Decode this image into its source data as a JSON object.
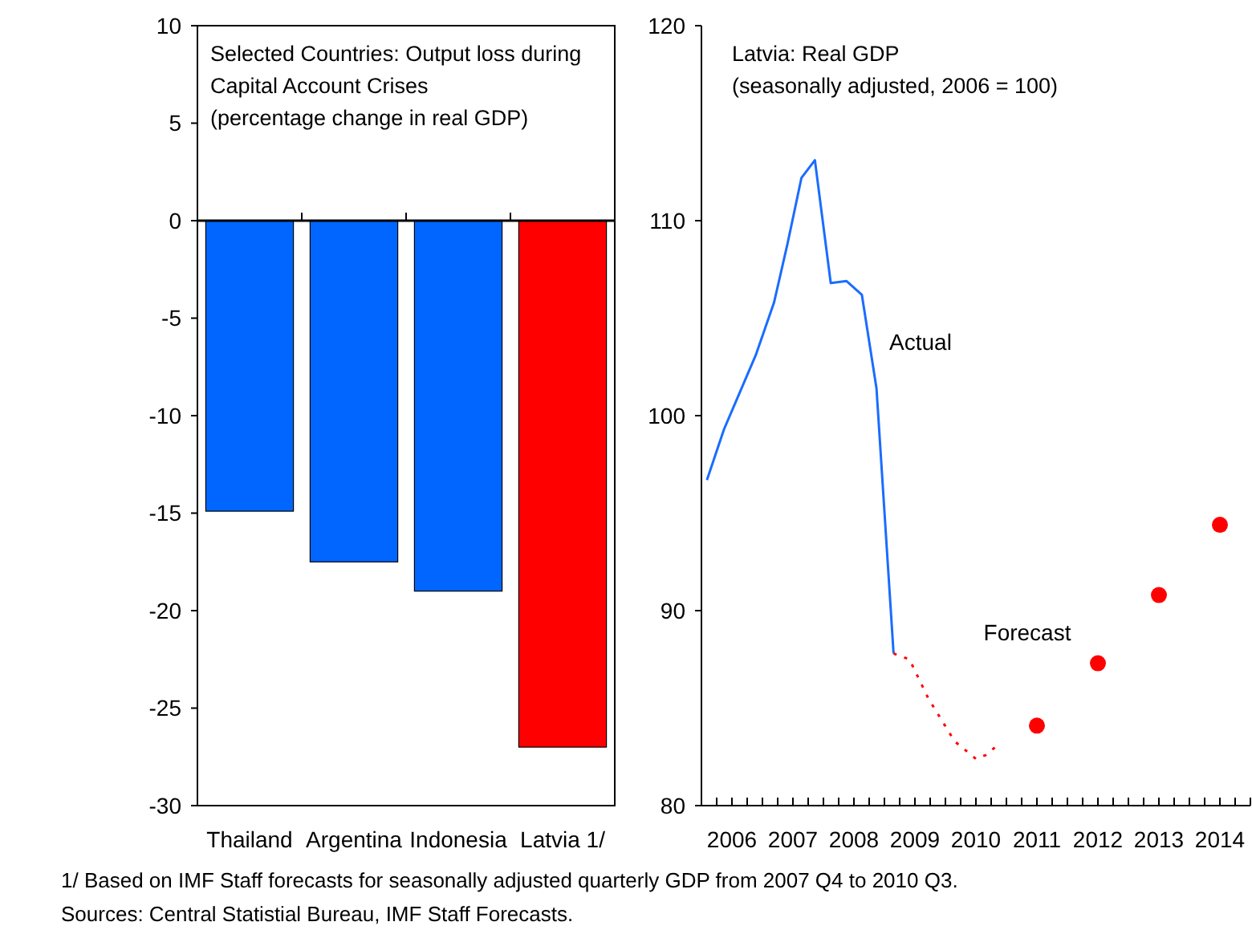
{
  "chart_data": [
    {
      "type": "bar",
      "title": "Selected Countries: Output loss during Capital Account Crises",
      "subtitle": "(percentage change in real GDP)",
      "categories": [
        "Thailand",
        "Argentina",
        "Indonesia",
        "Latvia 1/"
      ],
      "values": [
        -14.9,
        -17.5,
        -19.0,
        -27.0
      ],
      "colors": [
        "#0066ff",
        "#0066ff",
        "#0066ff",
        "#ff0000"
      ],
      "ylim": [
        -30,
        10
      ],
      "yticks": [
        -30,
        -25,
        -20,
        -15,
        -10,
        -5,
        0,
        5,
        10
      ],
      "annotations": [
        "1/ Based on IMF Staff forecasts for seasonally adjusted quarterly GDP from 2007 Q4 to 2010 Q3.",
        "Sources: Central Statistial Bureau, IMF Staff Forecasts."
      ]
    },
    {
      "type": "line",
      "title": "Latvia: Real GDP",
      "subtitle": "(seasonally adjusted, 2006 = 100)",
      "xlim": [
        2006,
        2015
      ],
      "ylim": [
        80,
        120
      ],
      "yticks": [
        80,
        90,
        100,
        110,
        120
      ],
      "xticks": [
        {
          "value": 2006,
          "label": null
        },
        {
          "value": 2006.25,
          "label": null
        },
        {
          "value": 2006.5,
          "label": "2006"
        },
        {
          "value": 2006.75,
          "label": null
        },
        {
          "value": 2007,
          "label": null
        },
        {
          "value": 2007.25,
          "label": null
        },
        {
          "value": 2007.5,
          "label": "2007"
        },
        {
          "value": 2007.75,
          "label": null
        },
        {
          "value": 2008,
          "label": null
        },
        {
          "value": 2008.25,
          "label": null
        },
        {
          "value": 2008.5,
          "label": "2008"
        },
        {
          "value": 2008.75,
          "label": null
        },
        {
          "value": 2009,
          "label": null
        },
        {
          "value": 2009.25,
          "label": null
        },
        {
          "value": 2009.5,
          "label": "2009"
        },
        {
          "value": 2009.75,
          "label": null
        },
        {
          "value": 2010,
          "label": null
        },
        {
          "value": 2010.25,
          "label": null
        },
        {
          "value": 2010.5,
          "label": "2010"
        },
        {
          "value": 2010.75,
          "label": null
        },
        {
          "value": 2011,
          "label": null
        },
        {
          "value": 2011.25,
          "label": null
        },
        {
          "value": 2011.5,
          "label": "2011"
        },
        {
          "value": 2011.75,
          "label": null
        },
        {
          "value": 2012,
          "label": null
        },
        {
          "value": 2012.25,
          "label": null
        },
        {
          "value": 2012.5,
          "label": "2012"
        },
        {
          "value": 2012.75,
          "label": null
        },
        {
          "value": 2013,
          "label": null
        },
        {
          "value": 2013.25,
          "label": null
        },
        {
          "value": 2013.5,
          "label": "2013"
        },
        {
          "value": 2013.75,
          "label": null
        },
        {
          "value": 2014,
          "label": null
        },
        {
          "value": 2014.25,
          "label": null
        },
        {
          "value": 2014.5,
          "label": "2014"
        },
        {
          "value": 2014.75,
          "label": null
        },
        {
          "value": 2015,
          "label": null
        }
      ],
      "series": [
        {
          "name": "Actual",
          "type": "line",
          "color": "#1a6cff",
          "line_style": "solid",
          "x": [
            2006.09,
            2006.37,
            2006.89,
            2007.19,
            2007.41,
            2007.64,
            2007.86,
            2008.12,
            2008.38,
            2008.63,
            2008.87,
            2009.15
          ],
          "values": [
            96.7,
            99.3,
            103.1,
            105.8,
            108.8,
            112.2,
            113.1,
            106.8,
            106.9,
            106.2,
            101.4,
            87.8
          ]
        },
        {
          "name": "Forecast",
          "type": "line",
          "color": "#ff0000",
          "line_style": "dotted",
          "x": [
            2009.15,
            2009.41,
            2009.72,
            2010.15,
            2010.5,
            2010.67,
            2010.89
          ],
          "values": [
            87.8,
            87.5,
            85.5,
            83.3,
            82.4,
            82.6,
            83.2
          ]
        },
        {
          "type": "scatter",
          "color": "#ff0000",
          "marker": "circle",
          "x": [
            2011.5,
            2012.5,
            2013.5,
            2014.5
          ],
          "values": [
            84.1,
            87.3,
            90.8,
            94.4
          ]
        }
      ]
    }
  ]
}
